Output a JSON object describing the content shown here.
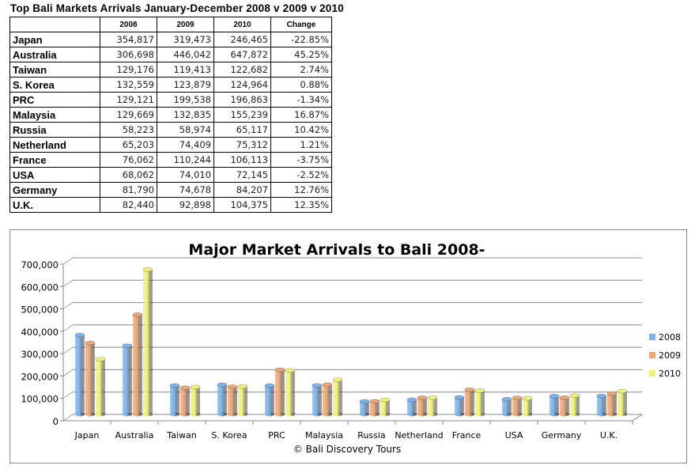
{
  "table": {
    "title": "Top Bali Markets Arrivals January-December 2008 v 2009 v 2010",
    "headers": [
      "",
      "2008",
      "2009",
      "2010",
      "Change"
    ],
    "rows": [
      [
        "Japan",
        "354,817",
        "319,473",
        "246,465",
        "-22.85%"
      ],
      [
        "Australia",
        "306,698",
        "446,042",
        "647,872",
        "45.25%"
      ],
      [
        "Taiwan",
        "129,176",
        "119,413",
        "122,682",
        "2.74%"
      ],
      [
        "S. Korea",
        "132,559",
        "123,879",
        "124,964",
        "0.88%"
      ],
      [
        "PRC",
        "129,121",
        "199,538",
        "196,863",
        "-1.34%"
      ],
      [
        "Malaysia",
        "129,669",
        "132,835",
        "155,239",
        "16.87%"
      ],
      [
        "Russia",
        "58,223",
        "58,974",
        "65,117",
        "10.42%"
      ],
      [
        "Netherland",
        "65,203",
        "74,409",
        "75,312",
        "1.21%"
      ],
      [
        "France",
        "76,062",
        "110,244",
        "106,113",
        "-3.75%"
      ],
      [
        "USA",
        "68,062",
        "74,010",
        "72,145",
        "-2.52%"
      ],
      [
        "Germany",
        "81,790",
        "74,678",
        "84,207",
        "12.76%"
      ],
      [
        "U.K.",
        "82,440",
        "92,898",
        "104,375",
        "12.35%"
      ]
    ]
  },
  "chart_data": {
    "type": "bar",
    "title": "Major Market Arrivals to Bali 2008-",
    "categories": [
      "Japan",
      "Australia",
      "Taiwan",
      "S. Korea",
      "PRC",
      "Malaysia",
      "Russia",
      "Netherland",
      "France",
      "USA",
      "Germany",
      "U.K."
    ],
    "series": [
      {
        "name": "2008",
        "color": "#7fb2e8",
        "values": [
          354817,
          306698,
          129176,
          132559,
          129121,
          129669,
          58223,
          65203,
          76062,
          68062,
          81790,
          82440
        ]
      },
      {
        "name": "2009",
        "color": "#e8a878",
        "values": [
          319473,
          446042,
          119413,
          123879,
          199538,
          132835,
          58974,
          74409,
          110244,
          74010,
          74678,
          92898
        ]
      },
      {
        "name": "2010",
        "color": "#f0f080",
        "values": [
          246465,
          647872,
          122682,
          124964,
          196863,
          155239,
          65117,
          75312,
          106113,
          72145,
          84207,
          104375
        ]
      }
    ],
    "ylim": [
      0,
      700000
    ],
    "yticks": [
      "0",
      "100,000",
      "200,000",
      "300,000",
      "400,000",
      "500,000",
      "600,000",
      "700,000"
    ],
    "grid": true,
    "legend": "right",
    "footer": "© Bali Discovery Tours"
  }
}
